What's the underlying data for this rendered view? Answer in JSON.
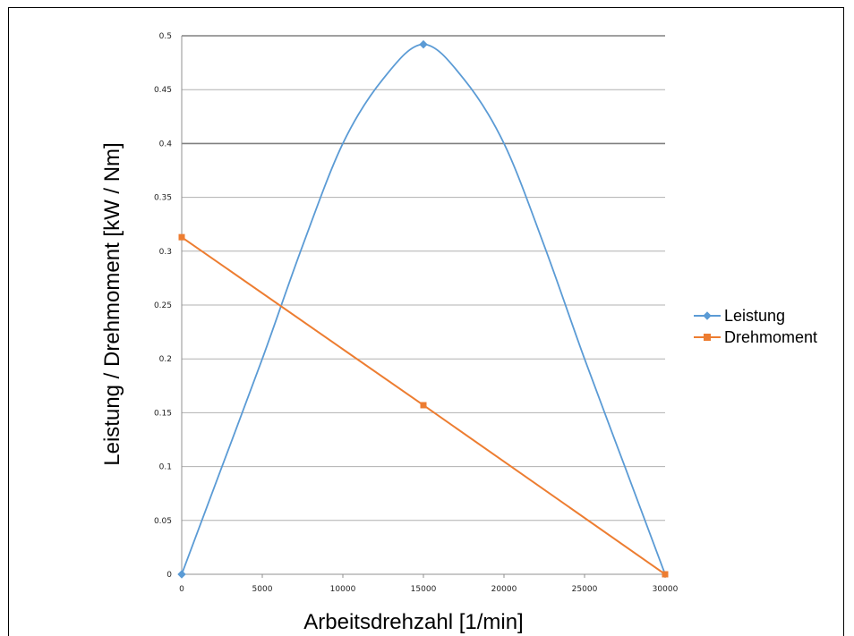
{
  "chart_data": {
    "type": "line",
    "xlabel": "Arbeitsdrehzahl [1/min]",
    "ylabel": "Leistung / Drehmoment [kW / Nm]",
    "xlim": [
      0,
      30000
    ],
    "ylim": [
      0,
      0.5
    ],
    "x_ticks": [
      "0",
      "5000",
      "10000",
      "15000",
      "20000",
      "25000",
      "30000"
    ],
    "y_ticks": [
      "0",
      "0.05",
      "0.1",
      "0.15",
      "0.2",
      "0.25",
      "0.3",
      "0.35",
      "0.4",
      "0.45",
      "0.5"
    ],
    "grid": true,
    "legend_position": "right",
    "series": [
      {
        "name": "Leistung",
        "color": "#5b9bd5",
        "marker": "diamond",
        "x": [
          0,
          2500,
          5000,
          7500,
          10000,
          12500,
          15000,
          17500,
          20000,
          22500,
          25000,
          27500,
          30000
        ],
        "y": [
          0,
          0.1,
          0.2,
          0.305,
          0.4,
          0.46,
          0.492,
          0.46,
          0.4,
          0.305,
          0.2,
          0.1,
          0
        ],
        "markers_at": [
          0,
          15000
        ]
      },
      {
        "name": "Drehmoment",
        "color": "#ed7d31",
        "marker": "square",
        "x": [
          0,
          15000,
          30000
        ],
        "y": [
          0.313,
          0.157,
          0
        ]
      }
    ]
  }
}
